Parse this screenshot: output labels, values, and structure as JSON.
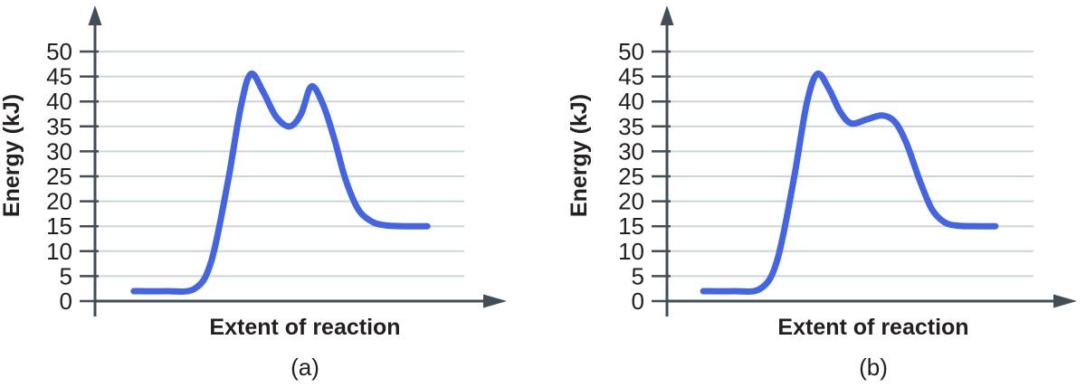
{
  "colors": {
    "curve": "#4365e4",
    "axis": "#414e58",
    "gridline": "#ccd6da",
    "text": "#231f20",
    "background": "#ffffff"
  },
  "chart_data": [
    {
      "id": "a",
      "type": "line",
      "caption": "(a)",
      "xlabel": "Extent of reaction",
      "ylabel": "Energy (kJ)",
      "yticks": [
        0,
        5,
        10,
        15,
        20,
        25,
        30,
        35,
        40,
        45,
        50
      ],
      "ylim": [
        0,
        55
      ],
      "grid": true,
      "legend": false,
      "reactant_energy_kJ": 2,
      "product_energy_kJ": 15,
      "peak_energies_kJ": [
        45.5,
        43
      ],
      "intermediate_valley_kJ": 35,
      "points_format": "[fraction of x-axis extent, energy in kJ]",
      "series": [
        {
          "name": "energy profile",
          "color": "#4365e4",
          "points": [
            [
              0.105,
              2
            ],
            [
              0.19,
              2
            ],
            [
              0.27,
              2.5
            ],
            [
              0.315,
              8
            ],
            [
              0.36,
              24
            ],
            [
              0.395,
              39
            ],
            [
              0.422,
              45.5
            ],
            [
              0.455,
              42
            ],
            [
              0.49,
              37
            ],
            [
              0.527,
              35
            ],
            [
              0.558,
              37.5
            ],
            [
              0.586,
              43
            ],
            [
              0.617,
              39.5
            ],
            [
              0.648,
              32.5
            ],
            [
              0.678,
              24.5
            ],
            [
              0.712,
              18.5
            ],
            [
              0.748,
              16
            ],
            [
              0.785,
              15.2
            ],
            [
              0.84,
              15
            ],
            [
              0.9,
              15
            ]
          ]
        }
      ]
    },
    {
      "id": "b",
      "type": "line",
      "caption": "(b)",
      "xlabel": "Extent of reaction",
      "ylabel": "Energy (kJ)",
      "yticks": [
        0,
        5,
        10,
        15,
        20,
        25,
        30,
        35,
        40,
        45,
        50
      ],
      "ylim": [
        0,
        55
      ],
      "grid": true,
      "legend": false,
      "reactant_energy_kJ": 2,
      "product_energy_kJ": 15,
      "peak_energies_kJ": [
        45.5,
        37
      ],
      "intermediate_valley_kJ": 35.5,
      "points_format": "[fraction of x-axis extent, energy in kJ]",
      "series": [
        {
          "name": "energy profile",
          "color": "#4365e4",
          "points": [
            [
              0.099,
              2
            ],
            [
              0.18,
              2
            ],
            [
              0.255,
              2.5
            ],
            [
              0.3,
              8
            ],
            [
              0.345,
              24
            ],
            [
              0.381,
              39.5
            ],
            [
              0.41,
              45.5
            ],
            [
              0.442,
              42.5
            ],
            [
              0.472,
              38
            ],
            [
              0.503,
              35.6
            ],
            [
              0.545,
              36.4
            ],
            [
              0.588,
              37.2
            ],
            [
              0.623,
              35.8
            ],
            [
              0.654,
              31.5
            ],
            [
              0.688,
              24.5
            ],
            [
              0.722,
              18.5
            ],
            [
              0.757,
              15.8
            ],
            [
              0.795,
              15.1
            ],
            [
              0.85,
              15
            ],
            [
              0.896,
              15
            ]
          ]
        }
      ]
    }
  ]
}
